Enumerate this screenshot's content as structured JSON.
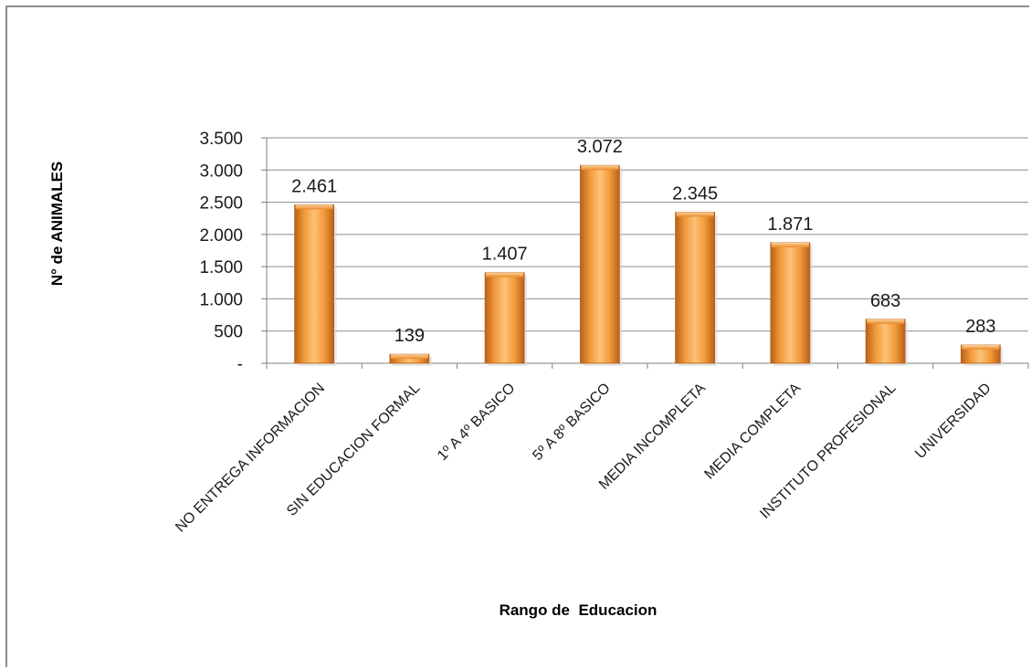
{
  "chart_data": {
    "type": "bar",
    "xlabel": "Rango de  Educacion",
    "ylabel": "N° de ANIMALES",
    "categories": [
      "NO ENTREGA INFORMACION",
      "SIN EDUCACION FORMAL",
      "1º A 4º BASICO",
      "5º A 8º BASICO",
      "MEDIA INCOMPLETA",
      "MEDIA COMPLETA",
      "INSTITUTO PROFESIONAL",
      "UNIVERSIDAD"
    ],
    "values": [
      2461,
      139,
      1407,
      3072,
      2345,
      1871,
      683,
      283
    ],
    "value_labels": [
      "2.461",
      "139",
      "1.407",
      "3.072",
      "2.345",
      "1.871",
      "683",
      "283"
    ],
    "yticks": [
      0,
      500,
      1000,
      1500,
      2000,
      2500,
      3000,
      3500
    ],
    "ytick_labels": [
      "-",
      "500",
      "1.000",
      "1.500",
      "2.000",
      "2.500",
      "3.000",
      "3.500"
    ],
    "ylim": [
      0,
      3500
    ],
    "grid": true,
    "legend": false,
    "bar_color": "#f0962e"
  }
}
